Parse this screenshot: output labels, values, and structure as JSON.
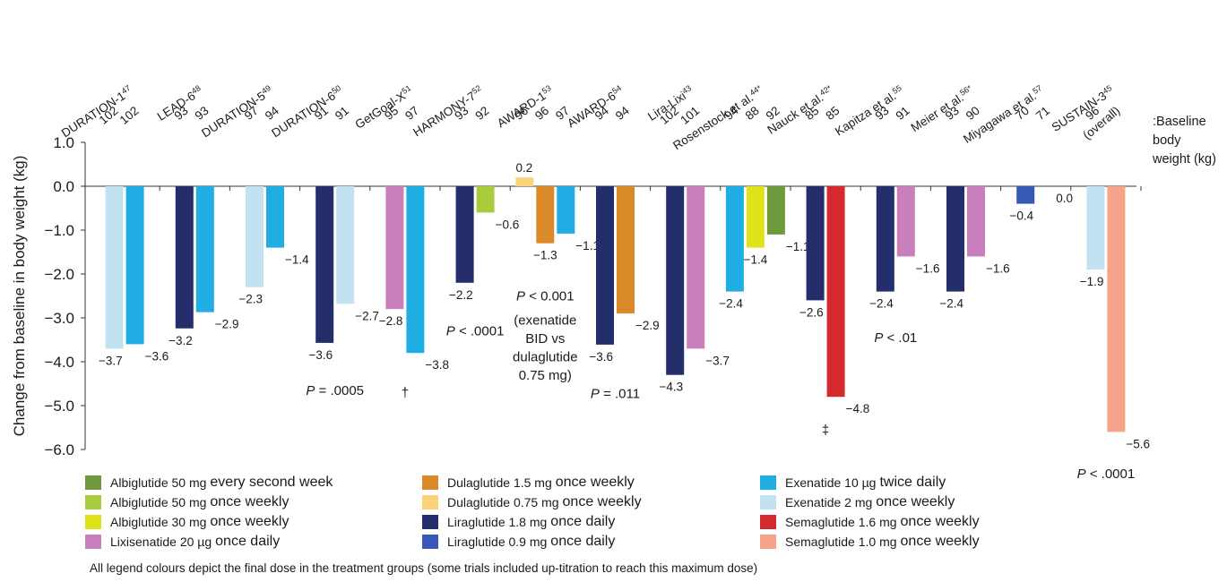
{
  "chart_data": {
    "type": "bar",
    "ylabel": "Change from baseline in body weight (kg)",
    "ylim": [
      -6.0,
      1.0
    ],
    "yticks": [
      "1.0",
      "0.0",
      "−1.0",
      "−2.0",
      "−3.0",
      "−4.0",
      "−5.0",
      "−6.0"
    ],
    "baseline_label": [
      ":Baseline",
      "body",
      "weight (kg)"
    ],
    "trials": [
      {
        "name": "DURATION-1",
        "ref": "47",
        "baseline": [
          "102",
          "102"
        ],
        "bars": [
          {
            "drug": "exe2",
            "value": -3.7,
            "label": "−3.7"
          },
          {
            "drug": "exe10",
            "value": -3.6,
            "label": "−3.6"
          }
        ],
        "notes": []
      },
      {
        "name": "LEAD-6",
        "ref": "48",
        "baseline": [
          "93",
          "93"
        ],
        "bars": [
          {
            "drug": "lira18",
            "value": -3.24,
            "label": "−3.2"
          },
          {
            "drug": "exe10",
            "value": -2.87,
            "label": "−2.9"
          }
        ],
        "notes": []
      },
      {
        "name": "DURATION-5",
        "ref": "49",
        "baseline": [
          "97",
          "94"
        ],
        "bars": [
          {
            "drug": "exe2",
            "value": -2.3,
            "label": "−2.3"
          },
          {
            "drug": "exe10",
            "value": -1.4,
            "label": "−1.4"
          }
        ],
        "notes": []
      },
      {
        "name": "DURATION-6",
        "ref": "50",
        "baseline": [
          "91",
          "91"
        ],
        "bars": [
          {
            "drug": "lira18",
            "value": -3.57,
            "label": "−3.6"
          },
          {
            "drug": "exe2",
            "value": -2.68,
            "label": "−2.7"
          }
        ],
        "notes": [
          {
            "text": "P = .0005",
            "at": -4.65
          }
        ]
      },
      {
        "name": "GetGoal-X",
        "ref": "51",
        "baseline": [
          "95",
          "97"
        ],
        "bars": [
          {
            "drug": "lixi",
            "value": -2.8,
            "label": "−2.8"
          },
          {
            "drug": "exe10",
            "value": -3.8,
            "label": "−3.8"
          }
        ],
        "notes": [
          {
            "text": "†",
            "at": -4.7
          }
        ]
      },
      {
        "name": "HARMONY-7",
        "ref": "52",
        "baseline": [
          "93",
          "92"
        ],
        "bars": [
          {
            "drug": "lira18",
            "value": -2.2,
            "label": "−2.2"
          },
          {
            "drug": "albi50w",
            "value": -0.6,
            "label": "−0.6"
          }
        ],
        "notes": [
          {
            "text": "P < .0001",
            "at": -3.3
          }
        ]
      },
      {
        "name": "AWARD-1",
        "ref": "53",
        "baseline": [
          "96",
          "96",
          "97"
        ],
        "bars": [
          {
            "drug": "dula075",
            "value": 0.2,
            "label": "0.2"
          },
          {
            "drug": "dula15",
            "value": -1.3,
            "label": "−1.3"
          },
          {
            "drug": "exe10",
            "value": -1.08,
            "label": "−1.1"
          }
        ],
        "notes": [
          {
            "text": "P < 0.001",
            "at": -2.5
          },
          {
            "text": "(exenatide",
            "at": -3.05
          },
          {
            "text": "BID vs",
            "at": -3.47
          },
          {
            "text": "dulaglutide",
            "at": -3.89
          },
          {
            "text": "0.75 mg)",
            "at": -4.31
          }
        ]
      },
      {
        "name": "AWARD-6",
        "ref": "54",
        "baseline": [
          "94",
          "94"
        ],
        "bars": [
          {
            "drug": "lira18",
            "value": -3.61,
            "label": "−3.6"
          },
          {
            "drug": "dula15",
            "value": -2.9,
            "label": "−2.9"
          }
        ],
        "notes": [
          {
            "text": "P = .011",
            "at": -4.72
          }
        ]
      },
      {
        "name": "Lira-Lixi",
        "ref": "43",
        "baseline": [
          "102",
          "101"
        ],
        "bars": [
          {
            "drug": "lira18",
            "value": -4.3,
            "label": "−4.3"
          },
          {
            "drug": "lixi",
            "value": -3.7,
            "label": "−3.7"
          }
        ],
        "notes": []
      },
      {
        "name": "Rosenstock et al.",
        "ref": "44*",
        "baseline": [
          "94",
          "88",
          "92"
        ],
        "bars": [
          {
            "drug": "exe10",
            "value": -2.4,
            "label": "−2.4"
          },
          {
            "drug": "albi30",
            "value": -1.4,
            "label": "−1.4"
          },
          {
            "drug": "albi50e",
            "value": -1.1,
            "label": "−1.1"
          }
        ],
        "notes": []
      },
      {
        "name": "Nauck et al.",
        "ref": "42*",
        "baseline": [
          "85",
          "85"
        ],
        "bars": [
          {
            "drug": "lira18",
            "value": -2.6,
            "label": "−2.6"
          },
          {
            "drug": "sema16",
            "value": -4.8,
            "label": "−4.8"
          }
        ],
        "notes": [
          {
            "text": "‡",
            "at": -5.55
          }
        ]
      },
      {
        "name": "Kapitza et al.",
        "ref": "55",
        "baseline": [
          "93",
          "91"
        ],
        "bars": [
          {
            "drug": "lira18",
            "value": -2.4,
            "label": "−2.4"
          },
          {
            "drug": "lixi",
            "value": -1.6,
            "label": "−1.6"
          }
        ],
        "notes": [
          {
            "text": "P < .01",
            "at": -3.45
          }
        ]
      },
      {
        "name": "Meier et al.",
        "ref": "56*",
        "baseline": [
          "93",
          "90"
        ],
        "bars": [
          {
            "drug": "lira18",
            "value": -2.4,
            "label": "−2.4"
          },
          {
            "drug": "lixi",
            "value": -1.6,
            "label": "−1.6"
          }
        ],
        "notes": []
      },
      {
        "name": "Miyagawa et al.",
        "ref": "57",
        "baseline": [
          "70",
          "71"
        ],
        "bars": [
          {
            "drug": "lira09",
            "value": -0.4,
            "label": "−0.4"
          },
          {
            "drug": "dula075",
            "value": 0.0,
            "label": "0.0"
          }
        ],
        "notes": []
      },
      {
        "name": "SUSTAIN-3",
        "ref": "45",
        "baseline": [
          "96",
          "(overall)"
        ],
        "bars": [
          {
            "drug": "exe2",
            "value": -1.9,
            "label": "−1.9"
          },
          {
            "drug": "sema10",
            "value": -5.6,
            "label": "−5.6"
          }
        ],
        "notes": [
          {
            "text": "P < .0001",
            "at": -6.55
          }
        ]
      }
    ]
  },
  "colors": {
    "albi50e": "#6f9a3c",
    "albi50w": "#a8cc3c",
    "albi30": "#dfe31a",
    "lixi": "#c97fbc",
    "dula15": "#da8a29",
    "dula075": "#f9d47c",
    "lira18": "#242e6b",
    "lira09": "#3559b4",
    "exe10": "#1fade4",
    "exe2": "#c3e2f1",
    "sema16": "#d42a2e",
    "sema10": "#f7a38a"
  },
  "legend": [
    {
      "key": "albi50e",
      "dose": "Albiglutide 50 mg",
      "freq": "every second week"
    },
    {
      "key": "albi50w",
      "dose": "Albiglutide 50 mg",
      "freq": "once weekly"
    },
    {
      "key": "albi30",
      "dose": "Albiglutide 30 mg",
      "freq": "once weekly"
    },
    {
      "key": "lixi",
      "dose": "Lixisenatide 20 µg",
      "freq": "once daily"
    },
    {
      "key": "dula15",
      "dose": "Dulaglutide 1.5 mg",
      "freq": "once weekly"
    },
    {
      "key": "dula075",
      "dose": "Dulaglutide 0.75 mg",
      "freq": "once weekly"
    },
    {
      "key": "lira18",
      "dose": "Liraglutide 1.8 mg",
      "freq": "once daily"
    },
    {
      "key": "lira09",
      "dose": "Liraglutide 0.9 mg",
      "freq": "once daily"
    },
    {
      "key": "exe10",
      "dose": "Exenatide 10 µg",
      "freq": "twice daily"
    },
    {
      "key": "exe2",
      "dose": "Exenatide 2 mg",
      "freq": "once weekly"
    },
    {
      "key": "sema16",
      "dose": "Semaglutide 1.6 mg",
      "freq": "once weekly"
    },
    {
      "key": "sema10",
      "dose": "Semaglutide 1.0 mg",
      "freq": "once weekly"
    }
  ],
  "footnote": "All legend colours depict the final dose in the treatment groups (some trials included up-titration to reach this maximum dose)"
}
